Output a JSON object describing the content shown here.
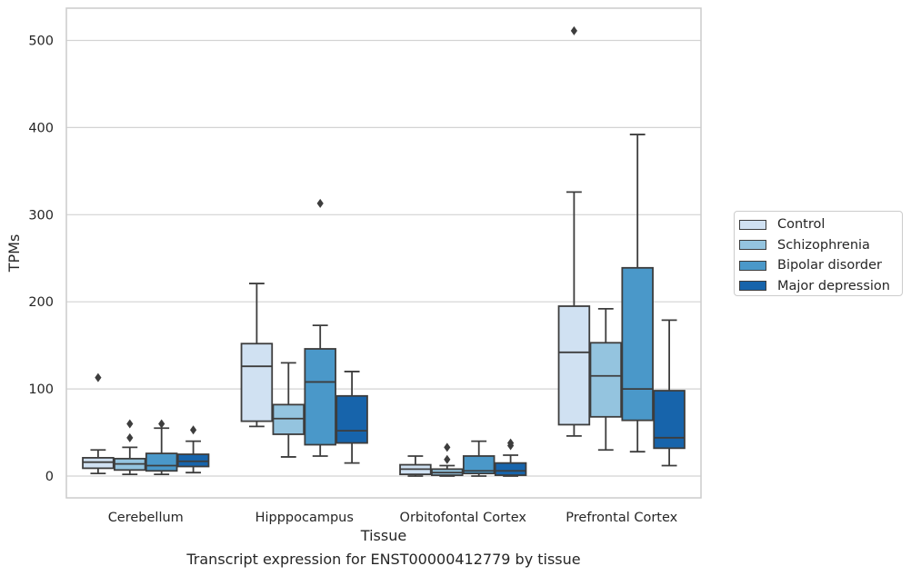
{
  "caption": "Transcript expression for ENST00000412779 by tissue",
  "chart_data": {
    "type": "box",
    "title": "",
    "xlabel": "Tissue",
    "ylabel": "TPMs",
    "ylim": [
      -25,
      537
    ],
    "yticks": [
      0,
      100,
      200,
      300,
      400,
      500
    ],
    "grid": "horizontal",
    "legend_placement": "right, outside plot",
    "categories": [
      "Cerebellum",
      "Hipppocampus",
      "Orbitofontal Cortex",
      "Prefrontal Cortex"
    ],
    "series": [
      {
        "name": "Control",
        "color": "#d0e1f2",
        "boxes": [
          {
            "whisker_low": 3,
            "q1": 9,
            "median": 16,
            "q3": 21,
            "whisker_high": 30,
            "outliers": [
              113
            ]
          },
          {
            "whisker_low": 57,
            "q1": 63,
            "median": 126,
            "q3": 152,
            "whisker_high": 221,
            "outliers": []
          },
          {
            "whisker_low": 0,
            "q1": 2,
            "median": 8,
            "q3": 13,
            "whisker_high": 23,
            "outliers": []
          },
          {
            "whisker_low": 46,
            "q1": 59,
            "median": 142,
            "q3": 195,
            "whisker_high": 326,
            "outliers": [
              511
            ]
          }
        ]
      },
      {
        "name": "Schizophrenia",
        "color": "#94c4df",
        "boxes": [
          {
            "whisker_low": 2,
            "q1": 7,
            "median": 14,
            "q3": 20,
            "whisker_high": 33,
            "outliers": [
              44,
              60
            ]
          },
          {
            "whisker_low": 22,
            "q1": 48,
            "median": 66,
            "q3": 82,
            "whisker_high": 130,
            "outliers": []
          },
          {
            "whisker_low": 0,
            "q1": 1,
            "median": 4,
            "q3": 8,
            "whisker_high": 12,
            "outliers": [
              19,
              33
            ]
          },
          {
            "whisker_low": 30,
            "q1": 68,
            "median": 115,
            "q3": 153,
            "whisker_high": 192,
            "outliers": []
          }
        ]
      },
      {
        "name": "Bipolar disorder",
        "color": "#4a98c9",
        "boxes": [
          {
            "whisker_low": 2,
            "q1": 6,
            "median": 12,
            "q3": 26,
            "whisker_high": 55,
            "outliers": [
              60
            ]
          },
          {
            "whisker_low": 23,
            "q1": 36,
            "median": 108,
            "q3": 146,
            "whisker_high": 173,
            "outliers": [
              313
            ]
          },
          {
            "whisker_low": 0,
            "q1": 3,
            "median": 6,
            "q3": 23,
            "whisker_high": 40,
            "outliers": []
          },
          {
            "whisker_low": 28,
            "q1": 64,
            "median": 100,
            "q3": 239,
            "whisker_high": 392,
            "outliers": []
          }
        ]
      },
      {
        "name": "Major depression",
        "color": "#1764ab",
        "boxes": [
          {
            "whisker_low": 4,
            "q1": 11,
            "median": 17,
            "q3": 25,
            "whisker_high": 40,
            "outliers": [
              53
            ]
          },
          {
            "whisker_low": 15,
            "q1": 38,
            "median": 52,
            "q3": 92,
            "whisker_high": 120,
            "outliers": []
          },
          {
            "whisker_low": 0,
            "q1": 1,
            "median": 6,
            "q3": 15,
            "whisker_high": 24,
            "outliers": [
              35,
              38
            ]
          },
          {
            "whisker_low": 12,
            "q1": 32,
            "median": 44,
            "q3": 98,
            "whisker_high": 179,
            "outliers": []
          }
        ]
      }
    ]
  }
}
